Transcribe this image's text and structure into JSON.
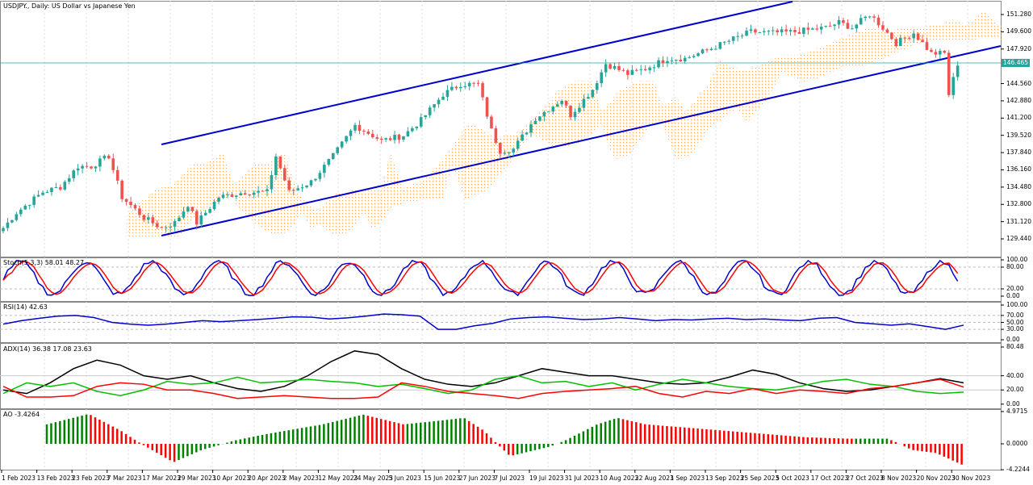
{
  "title": "USDJPY., Daily:  US Dollar vs Japanese Yen",
  "current_price": "146.465",
  "price_axis": [
    "151.280",
    "149.600",
    "147.920",
    "144.560",
    "142.880",
    "141.200",
    "139.520",
    "137.840",
    "136.160",
    "134.480",
    "132.800",
    "131.120",
    "129.440"
  ],
  "stoch": {
    "label": "Stoch(5,3,3) 58.01 48.27",
    "axis": [
      "100.00",
      "80.00",
      "20.00",
      "0.00"
    ]
  },
  "rsi": {
    "label": "RSI(14) 42.63",
    "axis": [
      "100.00",
      "70.00",
      "50.00",
      "30.00",
      "0.00"
    ]
  },
  "adx": {
    "label": "ADX(14) 36.38 17.08 23.63",
    "axis": [
      "80.48",
      "40.00",
      "20.00",
      "0.00"
    ]
  },
  "ao": {
    "label": "AO -3.4264",
    "axis": [
      "4.9715",
      "0.0000",
      "-4.2244"
    ]
  },
  "dates": [
    "1 Feb 2023",
    "13 Feb 2023",
    "23 Feb 2023",
    "7 Mar 2023",
    "17 Mar 2023",
    "29 Mar 2023",
    "10 Apr 2023",
    "20 Apr 2023",
    "2 May 2023",
    "12 May 2023",
    "24 May 2023",
    "5 Jun 2023",
    "15 Jun 2023",
    "27 Jun 2023",
    "7 Jul 2023",
    "19 Jul 2023",
    "31 Jul 2023",
    "10 Aug 2023",
    "22 Aug 2023",
    "1 Sep 2023",
    "13 Sep 2023",
    "25 Sep 2023",
    "5 Oct 2023",
    "17 Oct 2023",
    "27 Oct 2023",
    "8 Nov 2023",
    "20 Nov 2023",
    "30 Nov 2023"
  ],
  "colors": {
    "bull": "#26a69a",
    "bear": "#ef5350",
    "channel": "#0000cc",
    "cloud": "#f4a460",
    "stoch_main": "#0000cc",
    "stoch_signal": "#ff0000",
    "adx": "#000000",
    "plus_di": "#00c000",
    "minus_di": "#ff0000",
    "ao_up": "#008000",
    "ao_down": "#ff0000"
  },
  "price_path": [
    [
      130.5,
      0
    ],
    [
      132,
      3
    ],
    [
      134,
      9
    ],
    [
      134.5,
      13
    ],
    [
      136.5,
      17
    ],
    [
      136.5,
      20
    ],
    [
      137.5,
      24
    ],
    [
      133.5,
      27
    ],
    [
      131.5,
      32
    ],
    [
      130.5,
      36
    ],
    [
      131,
      39
    ],
    [
      132.8,
      42
    ],
    [
      131,
      44
    ],
    [
      133.5,
      49
    ],
    [
      134,
      55
    ],
    [
      134,
      60
    ],
    [
      137.5,
      62
    ],
    [
      134,
      65
    ],
    [
      135,
      70
    ],
    [
      137.5,
      75
    ],
    [
      140.5,
      80
    ],
    [
      139,
      86
    ],
    [
      139.5,
      91
    ],
    [
      141,
      95
    ],
    [
      143.5,
      100
    ],
    [
      144.5,
      104
    ],
    [
      144.5,
      108
    ],
    [
      140,
      111
    ],
    [
      138,
      113
    ],
    [
      138.2,
      116
    ],
    [
      141.2,
      121
    ],
    [
      143,
      127
    ],
    [
      141.5,
      129
    ],
    [
      144,
      134
    ],
    [
      146.5,
      137
    ],
    [
      145.5,
      142
    ],
    [
      146,
      146
    ],
    [
      147,
      151
    ],
    [
      147,
      155
    ],
    [
      147.8,
      160
    ],
    [
      148.9,
      166
    ],
    [
      149.6,
      170
    ],
    [
      149.5,
      175
    ],
    [
      149.6,
      180
    ],
    [
      150,
      187
    ],
    [
      150.5,
      190
    ],
    [
      150,
      193
    ],
    [
      151.3,
      197
    ],
    [
      150,
      200
    ],
    [
      148.5,
      203
    ],
    [
      149.5,
      207
    ],
    [
      147.5,
      211
    ],
    [
      147.5,
      214
    ],
    [
      143.5,
      215
    ],
    [
      146.5,
      217
    ]
  ],
  "rsi_values": [
    45,
    55,
    62,
    68,
    70,
    64,
    50,
    45,
    42,
    45,
    50,
    55,
    52,
    55,
    58,
    62,
    66,
    65,
    60,
    63,
    68,
    74,
    72,
    68,
    30,
    30,
    40,
    47,
    60,
    64,
    66,
    62,
    58,
    60,
    64,
    60,
    55,
    58,
    57,
    60,
    62,
    58,
    60,
    57,
    55,
    62,
    64,
    50,
    46,
    42,
    46,
    38,
    30,
    42
  ],
  "adx_values": {
    "adx": [
      20,
      15,
      30,
      50,
      62,
      55,
      40,
      35,
      40,
      30,
      22,
      18,
      25,
      40,
      60,
      75,
      70,
      50,
      35,
      28,
      25,
      30,
      40,
      50,
      45,
      40,
      40,
      35,
      30,
      28,
      30,
      38,
      48,
      42,
      30,
      22,
      18,
      20,
      25,
      30,
      36,
      30
    ],
    "plus_di": [
      15,
      30,
      25,
      30,
      18,
      12,
      20,
      32,
      28,
      30,
      38,
      30,
      32,
      35,
      32,
      30,
      25,
      28,
      22,
      15,
      20,
      35,
      40,
      30,
      32,
      25,
      30,
      20,
      28,
      35,
      30,
      25,
      22,
      20,
      25,
      32,
      35,
      28,
      25,
      18,
      15,
      17
    ],
    "minus_di": [
      25,
      10,
      10,
      12,
      25,
      30,
      28,
      20,
      20,
      15,
      8,
      10,
      12,
      10,
      8,
      8,
      10,
      30,
      25,
      18,
      15,
      12,
      8,
      15,
      18,
      20,
      22,
      25,
      15,
      10,
      18,
      15,
      22,
      15,
      20,
      18,
      15,
      22,
      25,
      30,
      35,
      24
    ]
  },
  "ao_path": [
    [
      3,
      58
    ],
    [
      4.6,
      110
    ],
    [
      2,
      150
    ],
    [
      0,
      175
    ],
    [
      -3,
      215
    ],
    [
      -1,
      250
    ],
    [
      0.5,
      290
    ],
    [
      1.5,
      330
    ],
    [
      3,
      400
    ],
    [
      4.5,
      450
    ],
    [
      3,
      500
    ],
    [
      3.5,
      540
    ],
    [
      4,
      575
    ],
    [
      2,
      600
    ],
    [
      -0.5,
      620
    ],
    [
      -2,
      632
    ],
    [
      -0.5,
      680
    ],
    [
      0.5,
      700
    ],
    [
      3,
      740
    ],
    [
      4,
      765
    ],
    [
      3,
      800
    ],
    [
      2.5,
      850
    ],
    [
      2,
      900
    ],
    [
      1.5,
      950
    ],
    [
      1,
      1000
    ],
    [
      0.8,
      1050
    ],
    [
      0.8,
      1100
    ],
    [
      0,
      1115
    ],
    [
      -1,
      1130
    ],
    [
      -1.5,
      1160
    ],
    [
      -3.4,
      1192
    ]
  ]
}
